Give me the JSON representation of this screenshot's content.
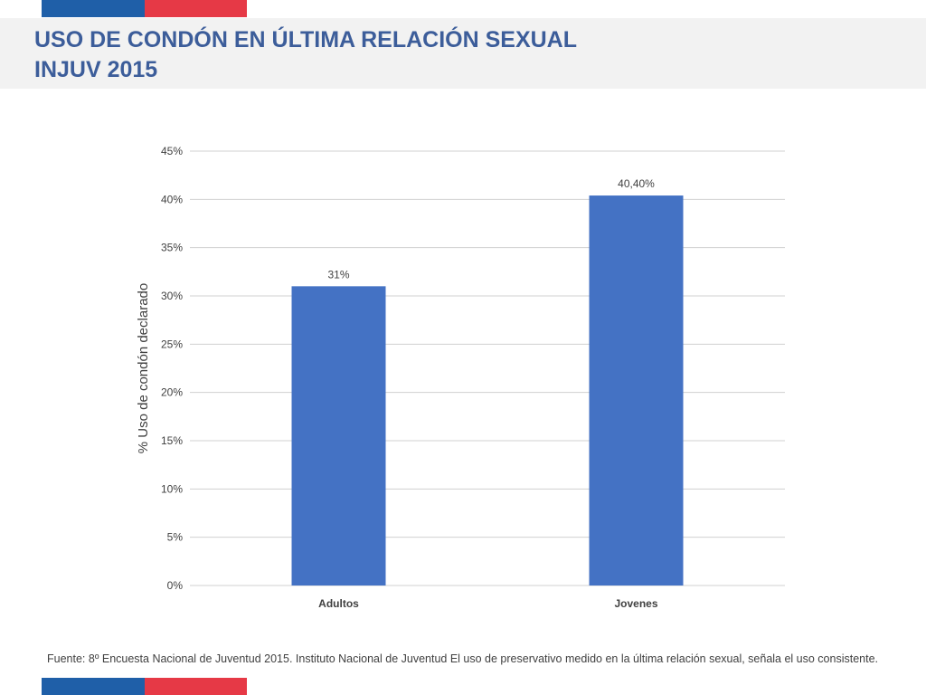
{
  "colors": {
    "flag_blue": "#1f5fa8",
    "flag_red": "#e63946",
    "title": "#3c5d9a",
    "bar": "#4472c4",
    "grid": "#d0d0d0",
    "header_band": "#f2f2f2"
  },
  "title": {
    "line1": "USO DE CONDÓN EN ÚLTIMA RELACIÓN SEXUAL",
    "line2": "INJUV 2015"
  },
  "chart_data": {
    "type": "bar",
    "categories": [
      "Adultos",
      "Jovenes"
    ],
    "values": [
      31,
      40.4
    ],
    "data_labels": [
      "31%",
      "40,40%"
    ],
    "ylabel": "% Uso de condón declarado",
    "ylim": [
      0,
      45
    ],
    "ytick_values": [
      0,
      5,
      10,
      15,
      20,
      25,
      30,
      35,
      40,
      45
    ],
    "ytick_labels": [
      "0%",
      "5%",
      "10%",
      "15%",
      "20%",
      "25%",
      "30%",
      "35%",
      "40%",
      "45%"
    ],
    "grid": true,
    "legend": "none"
  },
  "footer": {
    "source": "Fuente: 8º Encuesta Nacional de Juventud 2015. Instituto Nacional de Juventud El uso de preservativo medido en la última relación sexual, señala el uso consistente."
  }
}
